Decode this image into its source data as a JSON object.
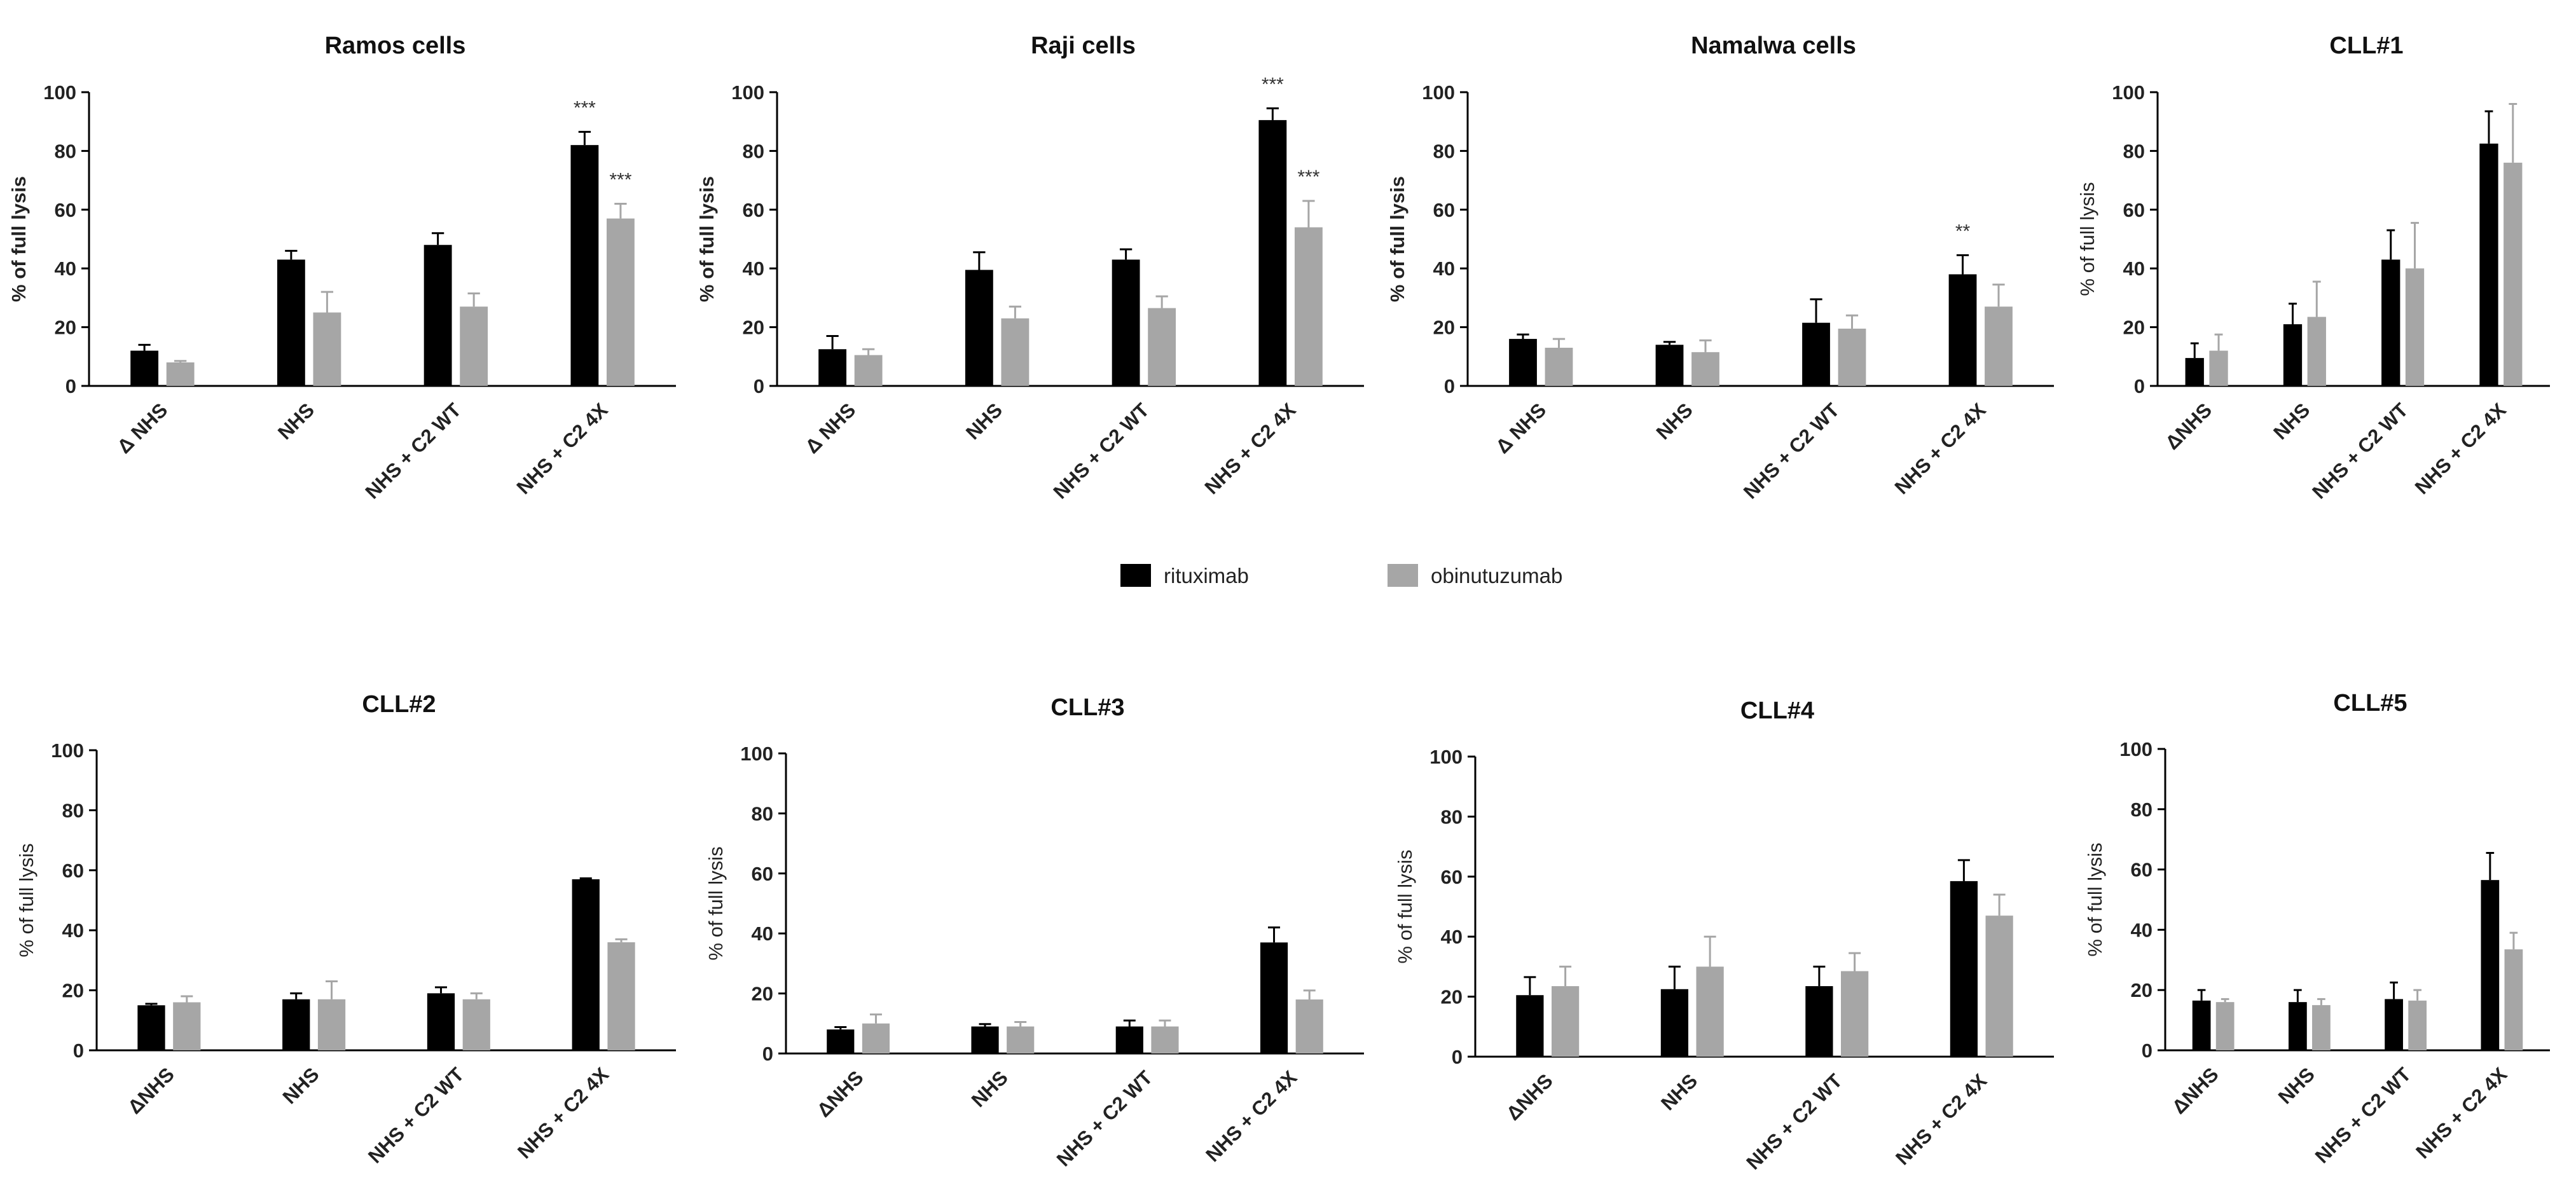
{
  "legend": {
    "items": [
      {
        "label": "rituximab",
        "color": "#000000"
      },
      {
        "label": "obinutuzumab",
        "color": "#a6a6a6"
      }
    ]
  },
  "chart_data": [
    {
      "type": "bar",
      "title": "Ramos cells",
      "ylabel": "% of full lysis",
      "ylim": [
        0,
        100
      ],
      "yticks": [
        0,
        20,
        40,
        60,
        80,
        100
      ],
      "categories": [
        "Δ NHS",
        "NHS",
        "NHS + C2 WT",
        "NHS + C2 4X"
      ],
      "series": [
        {
          "name": "rituximab",
          "values": [
            12,
            43,
            48,
            82
          ],
          "errors": [
            2,
            3,
            4,
            4.5
          ]
        },
        {
          "name": "obinutuzumab",
          "values": [
            8,
            25,
            27,
            57
          ],
          "errors": [
            0.5,
            7,
            4.5,
            5
          ]
        }
      ],
      "significance": [
        {
          "category": 3,
          "series": 0,
          "label": "***"
        },
        {
          "category": 3,
          "series": 1,
          "label": "***"
        }
      ]
    },
    {
      "type": "bar",
      "title": "Raji cells",
      "ylabel": "% of full lysis",
      "ylim": [
        0,
        100
      ],
      "yticks": [
        0,
        20,
        40,
        60,
        80,
        100
      ],
      "categories": [
        "Δ NHS",
        "NHS",
        "NHS + C2 WT",
        "NHS + C2 4X"
      ],
      "series": [
        {
          "name": "rituximab",
          "values": [
            12.5,
            39.5,
            43,
            90.5
          ],
          "errors": [
            4.5,
            6,
            3.5,
            4
          ]
        },
        {
          "name": "obinutuzumab",
          "values": [
            10.5,
            23,
            26.5,
            54
          ],
          "errors": [
            2,
            4,
            4,
            9
          ]
        }
      ],
      "significance": [
        {
          "category": 3,
          "series": 0,
          "label": "***"
        },
        {
          "category": 3,
          "series": 1,
          "label": "***"
        }
      ]
    },
    {
      "type": "bar",
      "title": "Namalwa cells",
      "ylabel": "% of full lysis",
      "ylim": [
        0,
        100
      ],
      "yticks": [
        0,
        20,
        40,
        60,
        80,
        100
      ],
      "categories": [
        "Δ NHS",
        "NHS",
        "NHS + C2 WT",
        "NHS + C2 4X"
      ],
      "series": [
        {
          "name": "rituximab",
          "values": [
            16,
            14,
            21.5,
            38
          ],
          "errors": [
            1.5,
            1,
            8,
            6.5
          ]
        },
        {
          "name": "obinutuzumab",
          "values": [
            13,
            11.5,
            19.5,
            27
          ],
          "errors": [
            3,
            4,
            4.5,
            7.5
          ]
        }
      ],
      "significance": [
        {
          "category": 3,
          "series": 0,
          "label": "**"
        }
      ]
    },
    {
      "type": "bar",
      "title": "CLL#1",
      "ylabel": "% of full lysis",
      "ylim": [
        0,
        100
      ],
      "yticks": [
        0,
        20,
        40,
        60,
        80,
        100
      ],
      "categories": [
        "ΔNHS",
        "NHS",
        "NHS + C2 WT",
        "NHS + C2 4X"
      ],
      "series": [
        {
          "name": "rituximab",
          "values": [
            9.5,
            21,
            43,
            82.5
          ],
          "errors": [
            5,
            7,
            10,
            11
          ]
        },
        {
          "name": "obinutuzumab",
          "values": [
            12,
            23.5,
            40,
            76
          ],
          "errors": [
            5.5,
            12,
            15.5,
            20
          ]
        }
      ],
      "significance": []
    },
    {
      "type": "bar",
      "title": "CLL#2",
      "ylabel": "% of full lysis",
      "ylim": [
        0,
        100
      ],
      "yticks": [
        0,
        20,
        40,
        60,
        80,
        100
      ],
      "categories": [
        "ΔNHS",
        "NHS",
        "NHS + C2 WT",
        "NHS + C2 4X"
      ],
      "series": [
        {
          "name": "rituximab",
          "values": [
            15,
            17,
            19,
            57
          ],
          "errors": [
            0.5,
            2,
            2,
            0.3
          ]
        },
        {
          "name": "obinutuzumab",
          "values": [
            16,
            17,
            17,
            36
          ],
          "errors": [
            2,
            6,
            2,
            1
          ]
        }
      ],
      "significance": []
    },
    {
      "type": "bar",
      "title": "CLL#3",
      "ylabel": "% of full lysis",
      "ylim": [
        0,
        100
      ],
      "yticks": [
        0,
        20,
        40,
        60,
        80,
        100
      ],
      "categories": [
        "ΔNHS",
        "NHS",
        "NHS + C2 WT",
        "NHS + C2 4X"
      ],
      "series": [
        {
          "name": "rituximab",
          "values": [
            8,
            9,
            9,
            37
          ],
          "errors": [
            0.8,
            0.8,
            2,
            5
          ]
        },
        {
          "name": "obinutuzumab",
          "values": [
            10,
            9,
            9,
            18
          ],
          "errors": [
            3,
            1.5,
            2,
            3
          ]
        }
      ],
      "significance": []
    },
    {
      "type": "bar",
      "title": "CLL#4",
      "ylabel": "% of full lysis",
      "ylim": [
        0,
        100
      ],
      "yticks": [
        0,
        20,
        40,
        60,
        80,
        100
      ],
      "categories": [
        "ΔNHS",
        "NHS",
        "NHS + C2 WT",
        "NHS + C2 4X"
      ],
      "series": [
        {
          "name": "rituximab",
          "values": [
            20.5,
            22.5,
            23.5,
            58.5
          ],
          "errors": [
            6,
            7.5,
            6.5,
            7
          ]
        },
        {
          "name": "obinutuzumab",
          "values": [
            23.5,
            30,
            28.5,
            47
          ],
          "errors": [
            6.5,
            10,
            6,
            7
          ]
        }
      ],
      "significance": []
    },
    {
      "type": "bar",
      "title": "CLL#5",
      "ylabel": "% of full lysis",
      "ylim": [
        0,
        100
      ],
      "yticks": [
        0,
        20,
        40,
        60,
        80,
        100
      ],
      "categories": [
        "ΔNHS",
        "NHS",
        "NHS + C2 WT",
        "NHS + C2 4X"
      ],
      "series": [
        {
          "name": "rituximab",
          "values": [
            16.5,
            16,
            17,
            56.5
          ],
          "errors": [
            3.5,
            4,
            5.5,
            9
          ]
        },
        {
          "name": "obinutuzumab",
          "values": [
            16,
            15,
            16.5,
            33.5
          ],
          "errors": [
            1,
            2,
            3.5,
            5.5
          ]
        }
      ],
      "significance": []
    }
  ]
}
